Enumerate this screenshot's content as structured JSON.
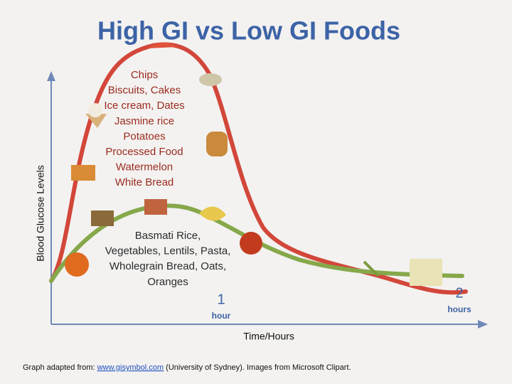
{
  "title": "High GI vs Low GI Foods",
  "y_axis_label": "Blood Glucose Levels",
  "x_axis_label": "Time/Hours",
  "high_gi_foods": [
    "Chips",
    "Biscuits, Cakes",
    "Ice cream, Dates",
    "Jasmine rice",
    "Potatoes",
    "Processed Food",
    "Watermelon",
    "White Bread"
  ],
  "low_gi_foods": [
    "Basmati Rice,",
    "Vegetables, Lentils, Pasta,",
    "Wholegrain Bread, Oats,",
    "Oranges"
  ],
  "time_marks": [
    {
      "number": "1",
      "unit": "hour"
    },
    {
      "number": "2",
      "unit": "hours"
    }
  ],
  "footer": {
    "prefix": "Graph adapted from: ",
    "link": "www.gisymbol.com",
    "suffix": " (University of Sydney). Images from Microsoft Clipart."
  }
}
